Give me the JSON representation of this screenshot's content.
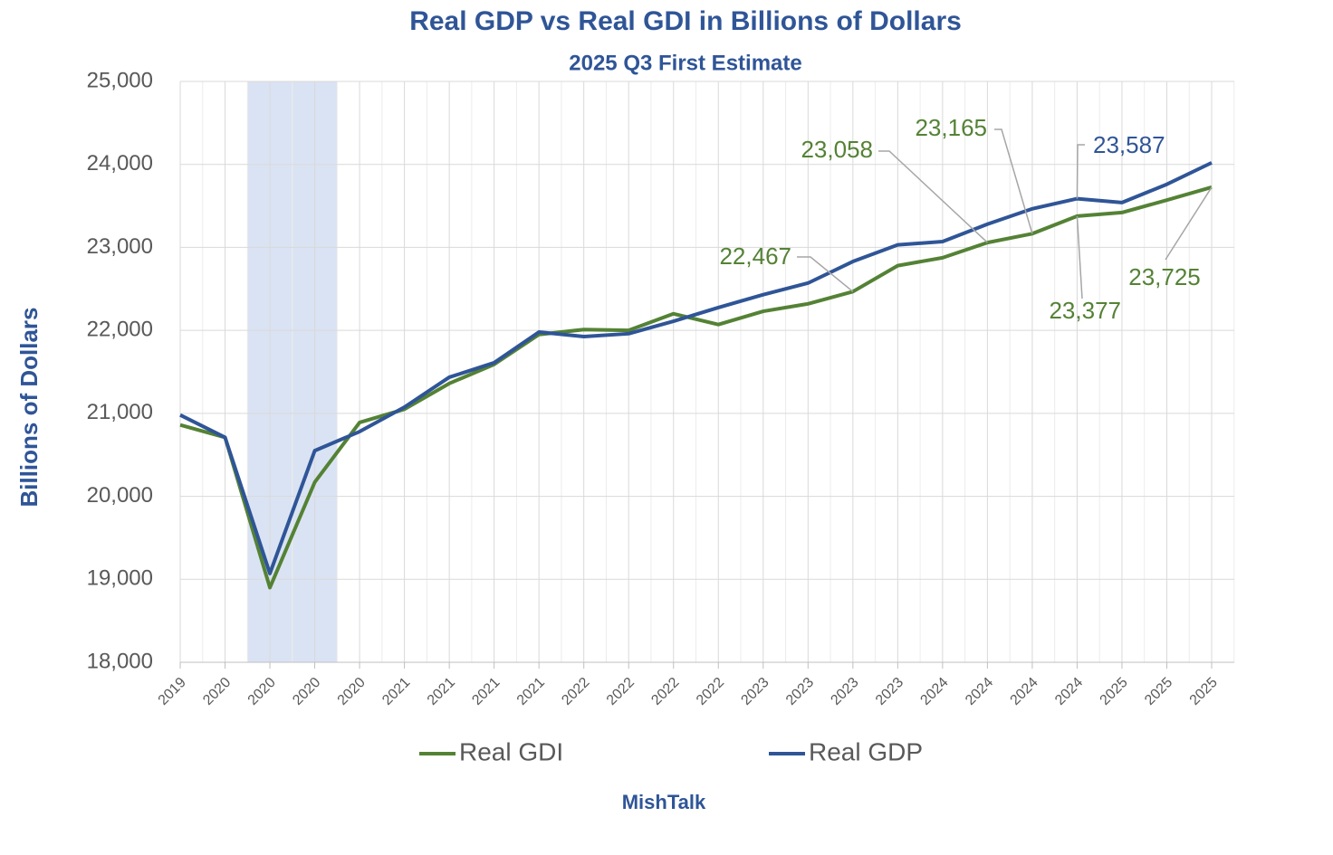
{
  "chart_data": {
    "type": "line",
    "title": "Real GDP vs Real GDI in Billions of Dollars",
    "subtitle": "2025 Q3 First Estimate",
    "y_label": "Billions of Dollars",
    "source": "MishTalk",
    "categories": [
      "2019",
      "2020",
      "2020",
      "2020",
      "2020",
      "2021",
      "2021",
      "2021",
      "2021",
      "2022",
      "2022",
      "2022",
      "2022",
      "2023",
      "2023",
      "2023",
      "2023",
      "2024",
      "2024",
      "2024",
      "2024",
      "2025",
      "2025",
      "2025"
    ],
    "series": [
      {
        "name": "Real GDI",
        "color": "#548235",
        "values": [
          20860,
          20710,
          18900,
          20170,
          20890,
          21050,
          21360,
          21590,
          21950,
          22010,
          22000,
          22200,
          22070,
          22230,
          22320,
          22467,
          22780,
          22875,
          23058,
          23165,
          23377,
          23420,
          23570,
          23725
        ],
        "value_labels": [
          null,
          null,
          null,
          null,
          null,
          null,
          null,
          null,
          null,
          null,
          null,
          null,
          null,
          null,
          null,
          "22,467",
          null,
          null,
          "23,058",
          "23,165",
          "23,377",
          null,
          null,
          "23,725"
        ]
      },
      {
        "name": "Real GDP",
        "color": "#2f5597",
        "values": [
          20980,
          20710,
          19070,
          20550,
          20780,
          21075,
          21435,
          21610,
          21980,
          21925,
          21960,
          22110,
          22275,
          22430,
          22570,
          22830,
          23030,
          23070,
          23280,
          23465,
          23587,
          23540,
          23760,
          24020
        ],
        "value_labels": [
          null,
          null,
          null,
          null,
          null,
          null,
          null,
          null,
          null,
          null,
          null,
          null,
          null,
          null,
          null,
          null,
          null,
          null,
          null,
          null,
          "23,587",
          null,
          null,
          null
        ]
      }
    ],
    "ylim": [
      18000,
      25000
    ],
    "yticks": [
      {
        "value": 18000,
        "label": "18,000"
      },
      {
        "value": 19000,
        "label": "19,000"
      },
      {
        "value": 20000,
        "label": "20,000"
      },
      {
        "value": 21000,
        "label": "21,000"
      },
      {
        "value": 22000,
        "label": "22,000"
      },
      {
        "value": 23000,
        "label": "23,000"
      },
      {
        "value": 24000,
        "label": "24,000"
      },
      {
        "value": 25000,
        "label": "25,000"
      }
    ],
    "grid": true,
    "legend": "bottom"
  }
}
